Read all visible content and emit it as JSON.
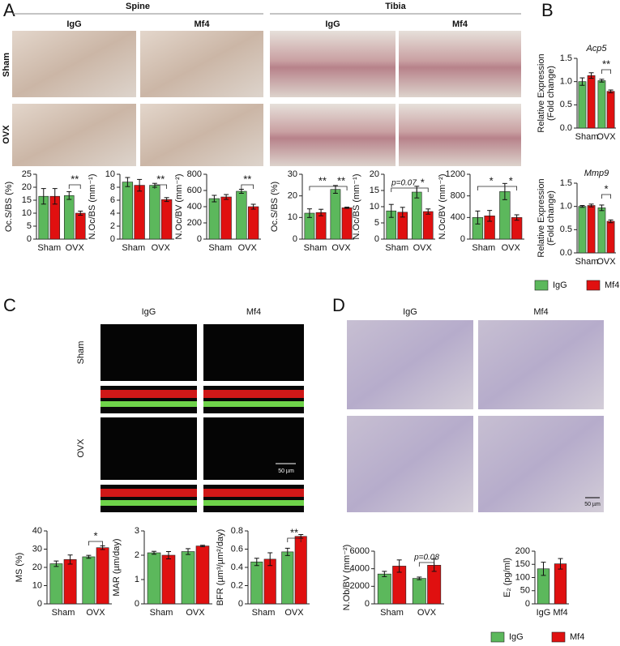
{
  "panel_a": {
    "letter": "A",
    "groups": [
      {
        "title": "Spine",
        "columns": [
          "IgG",
          "Mf4"
        ]
      },
      {
        "title": "Tibia",
        "columns": [
          "IgG",
          "Mf4"
        ]
      }
    ],
    "rows": [
      "Sham",
      "OVX"
    ]
  },
  "panel_b": {
    "letter": "B"
  },
  "panel_c": {
    "letter": "C",
    "columns": [
      "IgG",
      "Mf4"
    ],
    "rows": [
      "Sham",
      "OVX"
    ],
    "scale_bar": "50 µm"
  },
  "panel_d": {
    "letter": "D",
    "columns": [
      "IgG",
      "Mf4"
    ],
    "scale_bar": "50 µm"
  },
  "chart_data": [
    {
      "type": "bar",
      "ylabel": "Oc.S/BS (%)",
      "categories": [
        "Sham",
        "OVX"
      ],
      "series": [
        {
          "name": "IgG",
          "color": "#5cb85c",
          "values": [
            16.5,
            16.8
          ],
          "errors": [
            3,
            1.5
          ]
        },
        {
          "name": "Mf4",
          "color": "#e01010",
          "values": [
            16.5,
            10
          ],
          "errors": [
            3,
            0.8
          ]
        }
      ],
      "ylim": [
        0,
        25
      ],
      "yticks": [
        0,
        5,
        10,
        15,
        20,
        25
      ],
      "annotations": [
        "**"
      ]
    },
    {
      "type": "bar",
      "ylabel": "N.Oc/BS (mm⁻¹)",
      "categories": [
        "Sham",
        "OVX"
      ],
      "series": [
        {
          "name": "IgG",
          "color": "#5cb85c",
          "values": [
            8.8,
            8.3
          ],
          "errors": [
            0.7,
            0.3
          ]
        },
        {
          "name": "Mf4",
          "color": "#e01010",
          "values": [
            8.3,
            6.1
          ],
          "errors": [
            0.9,
            0.3
          ]
        }
      ],
      "ylim": [
        0,
        10
      ],
      "yticks": [
        0,
        2,
        4,
        6,
        8,
        10
      ],
      "annotations": [
        "**"
      ]
    },
    {
      "type": "bar",
      "ylabel": "N.Oc/BV (mm⁻²)",
      "categories": [
        "Sham",
        "OVX"
      ],
      "series": [
        {
          "name": "IgG",
          "color": "#5cb85c",
          "values": [
            500,
            590
          ],
          "errors": [
            40,
            25
          ]
        },
        {
          "name": "Mf4",
          "color": "#e01010",
          "values": [
            520,
            400
          ],
          "errors": [
            30,
            30
          ]
        }
      ],
      "ylim": [
        0,
        800
      ],
      "yticks": [
        0,
        200,
        400,
        600,
        800
      ],
      "annotations": [
        "**"
      ]
    },
    {
      "type": "bar",
      "ylabel": "Oc.S/BS (%)",
      "categories": [
        "Sham",
        "OVX"
      ],
      "series": [
        {
          "name": "IgG",
          "color": "#5cb85c",
          "values": [
            12,
            23
          ],
          "errors": [
            2,
            1.8
          ]
        },
        {
          "name": "Mf4",
          "color": "#e01010",
          "values": [
            12.3,
            14.5
          ],
          "errors": [
            1.5,
            0.3
          ]
        }
      ],
      "ylim": [
        0,
        30
      ],
      "yticks": [
        0,
        10,
        20,
        30
      ],
      "annotations": [
        "**",
        "**"
      ]
    },
    {
      "type": "bar",
      "ylabel": "N.Oc/BS (mm⁻¹)",
      "categories": [
        "Sham",
        "OVX"
      ],
      "series": [
        {
          "name": "IgG",
          "color": "#5cb85c",
          "values": [
            8.7,
            14.5
          ],
          "errors": [
            2,
            1.8
          ]
        },
        {
          "name": "Mf4",
          "color": "#e01010",
          "values": [
            8.3,
            8.5
          ],
          "errors": [
            1.5,
            0.8
          ]
        }
      ],
      "ylim": [
        0,
        20
      ],
      "yticks": [
        0,
        5,
        10,
        15,
        20
      ],
      "annotations": [
        "p=0.07",
        "*"
      ]
    },
    {
      "type": "bar",
      "ylabel": "N.Oc/BV (mm⁻²)",
      "categories": [
        "Sham",
        "OVX"
      ],
      "series": [
        {
          "name": "IgG",
          "color": "#5cb85c",
          "values": [
            400,
            880
          ],
          "errors": [
            120,
            150
          ]
        },
        {
          "name": "Mf4",
          "color": "#e01010",
          "values": [
            430,
            400
          ],
          "errors": [
            100,
            50
          ]
        }
      ],
      "ylim": [
        0,
        1200
      ],
      "yticks": [
        0,
        400,
        800,
        1200
      ],
      "annotations": [
        "*",
        "*"
      ]
    },
    {
      "type": "bar",
      "title": "Acp5",
      "ylabel": [
        "Relative Expression",
        "(Fold change)"
      ],
      "categories": [
        "Sham",
        "OVX"
      ],
      "series": [
        {
          "name": "IgG",
          "color": "#5cb85c",
          "values": [
            1.0,
            1.02
          ],
          "errors": [
            0.08,
            0.03
          ]
        },
        {
          "name": "Mf4",
          "color": "#e01010",
          "values": [
            1.13,
            0.79
          ],
          "errors": [
            0.06,
            0.03
          ]
        }
      ],
      "ylim": [
        0,
        1.5
      ],
      "yticks": [
        {
          "value": 0,
          "label": "0.0"
        },
        0.5,
        {
          "value": 1,
          "label": "1.0"
        },
        1.5
      ],
      "annotations": [
        "**"
      ]
    },
    {
      "type": "bar",
      "title": "Mmp9",
      "ylabel": [
        "Relative Expression",
        "(Fold change)"
      ],
      "categories": [
        "Sham",
        "OVX"
      ],
      "series": [
        {
          "name": "IgG",
          "color": "#5cb85c",
          "values": [
            1.0,
            0.97
          ],
          "errors": [
            0.02,
            0.06
          ]
        },
        {
          "name": "Mf4",
          "color": "#e01010",
          "values": [
            1.02,
            0.68
          ],
          "errors": [
            0.03,
            0.03
          ]
        }
      ],
      "ylim": [
        0,
        1.5
      ],
      "yticks": [
        {
          "value": 0,
          "label": "0.0"
        },
        0.5,
        {
          "value": 1,
          "label": "1.0"
        },
        1.5
      ],
      "annotations": [
        "*"
      ]
    },
    {
      "type": "bar",
      "ylabel": "MS (%)",
      "categories": [
        "Sham",
        "OVX"
      ],
      "series": [
        {
          "name": "IgG",
          "color": "#5cb85c",
          "values": [
            22,
            25.8
          ],
          "errors": [
            1.5,
            0.8
          ]
        },
        {
          "name": "Mf4",
          "color": "#e01010",
          "values": [
            24.3,
            30.8
          ],
          "errors": [
            2.5,
            1
          ]
        }
      ],
      "ylim": [
        0,
        40
      ],
      "yticks": [
        0,
        10,
        20,
        30,
        40
      ],
      "annotations": [
        "*"
      ]
    },
    {
      "type": "bar",
      "ylabel": "MAR (µm/day)",
      "categories": [
        "Sham",
        "OVX"
      ],
      "series": [
        {
          "name": "IgG",
          "color": "#5cb85c",
          "values": [
            2.1,
            2.15
          ],
          "errors": [
            0.06,
            0.12
          ]
        },
        {
          "name": "Mf4",
          "color": "#e01010",
          "values": [
            2.0,
            2.38
          ],
          "errors": [
            0.15,
            0.03
          ]
        }
      ],
      "ylim": [
        0,
        3
      ],
      "yticks": [
        0,
        1,
        2,
        3
      ]
    },
    {
      "type": "bar",
      "ylabel": "BFR (µm³/µm²/day)",
      "categories": [
        "Sham",
        "OVX"
      ],
      "series": [
        {
          "name": "IgG",
          "color": "#5cb85c",
          "values": [
            0.46,
            0.57
          ],
          "errors": [
            0.04,
            0.04
          ]
        },
        {
          "name": "Mf4",
          "color": "#e01010",
          "values": [
            0.49,
            0.74
          ],
          "errors": [
            0.07,
            0.02
          ]
        }
      ],
      "ylim": [
        0,
        0.8
      ],
      "yticks": [
        0,
        0.2,
        0.4,
        0.6,
        0.8
      ],
      "annotations": [
        "**"
      ]
    },
    {
      "type": "bar",
      "ylabel": "N.Ob/BV (mm⁻²)",
      "categories": [
        "Sham",
        "OVX"
      ],
      "series": [
        {
          "name": "IgG",
          "color": "#5cb85c",
          "values": [
            3400,
            2900
          ],
          "errors": [
            300,
            150
          ]
        },
        {
          "name": "Mf4",
          "color": "#e01010",
          "values": [
            4300,
            4400
          ],
          "errors": [
            700,
            700
          ]
        }
      ],
      "ylim": [
        0,
        6000
      ],
      "yticks": [
        0,
        2000,
        4000,
        6000
      ],
      "annotations": [
        "p=0.08"
      ]
    },
    {
      "type": "bar",
      "ylabel": "E₂ (pg/ml)",
      "categories": [
        "IgG",
        "Mf4"
      ],
      "values": [
        133,
        152
      ],
      "errors": [
        25,
        20
      ],
      "colors": [
        "#5cb85c",
        "#e01010"
      ],
      "ylim": [
        0,
        200
      ],
      "yticks": [
        0,
        50,
        100,
        150,
        200
      ]
    }
  ]
}
